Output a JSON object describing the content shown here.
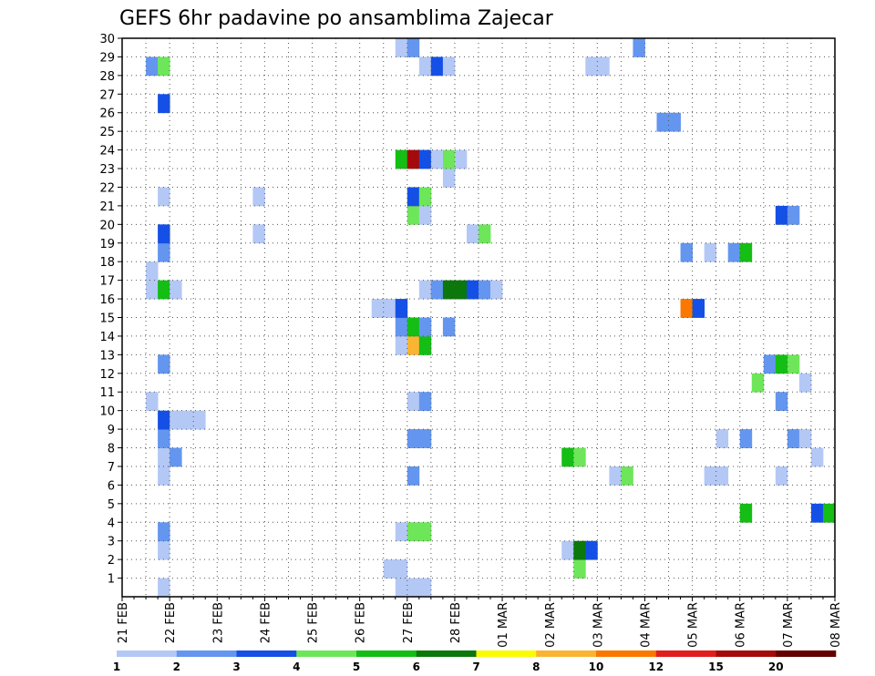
{
  "chart_data": {
    "type": "heatmap",
    "title": "GEFS 6hr padavine po ansamblima Zajecar",
    "xlabel": "",
    "ylabel": "",
    "x_ticks": [
      "21 FEB",
      "22 FEB",
      "23 FEB",
      "24 FEB",
      "25 FEB",
      "26 FEB",
      "27 FEB",
      "28 FEB",
      "01 MAR",
      "02 MAR",
      "03 MAR",
      "04 MAR",
      "05 MAR",
      "06 MAR",
      "07 MAR",
      "08 MAR"
    ],
    "x_unit": "6-hour steps from 21 FEB 00Z",
    "x_range": [
      0,
      60
    ],
    "y_ticks": [
      1,
      2,
      3,
      4,
      5,
      6,
      7,
      8,
      9,
      10,
      11,
      12,
      13,
      14,
      15,
      16,
      17,
      18,
      19,
      20,
      21,
      22,
      23,
      24,
      25,
      26,
      27,
      28,
      29,
      30
    ],
    "y_range": [
      0,
      30
    ],
    "grid": true,
    "legend": {
      "placement": "bottom",
      "bins": [
        1,
        2,
        3,
        4,
        5,
        6,
        7,
        8,
        10,
        12,
        15,
        20
      ],
      "labels": [
        "1",
        "2",
        "3",
        "4",
        "5",
        "6",
        "7",
        "8",
        "10",
        "12",
        "15",
        "20"
      ],
      "colors": [
        "#b4c8f6",
        "#6496f0",
        "#1450e6",
        "#6ee65a",
        "#14be14",
        "#0a780a",
        "#fafa00",
        "#fab432",
        "#fa7800",
        "#e11e1e",
        "#a50a0a",
        "#640000"
      ]
    },
    "cells": [
      {
        "member": 0,
        "step": 4,
        "level": 1
      },
      {
        "member": 0,
        "step": 24,
        "level": 1
      },
      {
        "member": 0,
        "step": 25,
        "level": 1
      },
      {
        "member": 0,
        "step": 26,
        "level": 1
      },
      {
        "member": 1,
        "step": 23,
        "level": 1
      },
      {
        "member": 1,
        "step": 24,
        "level": 1
      },
      {
        "member": 1,
        "step": 39,
        "level": 4
      },
      {
        "member": 2,
        "step": 4,
        "level": 1
      },
      {
        "member": 2,
        "step": 38,
        "level": 1
      },
      {
        "member": 2,
        "step": 39,
        "level": 6
      },
      {
        "member": 2,
        "step": 40,
        "level": 3
      },
      {
        "member": 3,
        "step": 4,
        "level": 2
      },
      {
        "member": 3,
        "step": 24,
        "level": 1
      },
      {
        "member": 3,
        "step": 25,
        "level": 4
      },
      {
        "member": 3,
        "step": 26,
        "level": 4
      },
      {
        "member": 4,
        "step": 53,
        "level": 5
      },
      {
        "member": 4,
        "step": 59,
        "level": 3
      },
      {
        "member": 4,
        "step": 60,
        "level": 5
      },
      {
        "member": 6,
        "step": 4,
        "level": 1
      },
      {
        "member": 6,
        "step": 25,
        "level": 2
      },
      {
        "member": 6,
        "step": 42,
        "level": 1
      },
      {
        "member": 6,
        "step": 43,
        "level": 4
      },
      {
        "member": 6,
        "step": 50,
        "level": 1
      },
      {
        "member": 6,
        "step": 51,
        "level": 1
      },
      {
        "member": 6,
        "step": 56,
        "level": 1
      },
      {
        "member": 7,
        "step": 4,
        "level": 1
      },
      {
        "member": 7,
        "step": 5,
        "level": 2
      },
      {
        "member": 7,
        "step": 38,
        "level": 5
      },
      {
        "member": 7,
        "step": 39,
        "level": 4
      },
      {
        "member": 7,
        "step": 59,
        "level": 1
      },
      {
        "member": 8,
        "step": 4,
        "level": 2
      },
      {
        "member": 8,
        "step": 25,
        "level": 2
      },
      {
        "member": 8,
        "step": 26,
        "level": 2
      },
      {
        "member": 8,
        "step": 51,
        "level": 1
      },
      {
        "member": 8,
        "step": 53,
        "level": 2
      },
      {
        "member": 8,
        "step": 57,
        "level": 2
      },
      {
        "member": 8,
        "step": 58,
        "level": 1
      },
      {
        "member": 9,
        "step": 4,
        "level": 3
      },
      {
        "member": 9,
        "step": 5,
        "level": 1
      },
      {
        "member": 9,
        "step": 6,
        "level": 1
      },
      {
        "member": 9,
        "step": 7,
        "level": 1
      },
      {
        "member": 10,
        "step": 3,
        "level": 1
      },
      {
        "member": 10,
        "step": 25,
        "level": 1
      },
      {
        "member": 10,
        "step": 26,
        "level": 2
      },
      {
        "member": 10,
        "step": 56,
        "level": 2
      },
      {
        "member": 11,
        "step": 54,
        "level": 4
      },
      {
        "member": 11,
        "step": 58,
        "level": 1
      },
      {
        "member": 12,
        "step": 4,
        "level": 2
      },
      {
        "member": 12,
        "step": 55,
        "level": 2
      },
      {
        "member": 12,
        "step": 56,
        "level": 5
      },
      {
        "member": 12,
        "step": 57,
        "level": 4
      },
      {
        "member": 13,
        "step": 24,
        "level": 1
      },
      {
        "member": 13,
        "step": 25,
        "level": 8
      },
      {
        "member": 13,
        "step": 26,
        "level": 5
      },
      {
        "member": 14,
        "step": 24,
        "level": 2
      },
      {
        "member": 14,
        "step": 25,
        "level": 5
      },
      {
        "member": 14,
        "step": 26,
        "level": 2
      },
      {
        "member": 14,
        "step": 28,
        "level": 2
      },
      {
        "member": 15,
        "step": 22,
        "level": 1
      },
      {
        "member": 15,
        "step": 23,
        "level": 1
      },
      {
        "member": 15,
        "step": 24,
        "level": 3
      },
      {
        "member": 15,
        "step": 48,
        "level": 9
      },
      {
        "member": 15,
        "step": 49,
        "level": 3
      },
      {
        "member": 16,
        "step": 3,
        "level": 1
      },
      {
        "member": 16,
        "step": 4,
        "level": 5
      },
      {
        "member": 16,
        "step": 5,
        "level": 1
      },
      {
        "member": 16,
        "step": 26,
        "level": 1
      },
      {
        "member": 16,
        "step": 27,
        "level": 2
      },
      {
        "member": 16,
        "step": 28,
        "level": 6
      },
      {
        "member": 16,
        "step": 29,
        "level": 6
      },
      {
        "member": 16,
        "step": 30,
        "level": 3
      },
      {
        "member": 16,
        "step": 31,
        "level": 2
      },
      {
        "member": 16,
        "step": 32,
        "level": 1
      },
      {
        "member": 17,
        "step": 3,
        "level": 1
      },
      {
        "member": 18,
        "step": 4,
        "level": 2
      },
      {
        "member": 18,
        "step": 48,
        "level": 2
      },
      {
        "member": 18,
        "step": 50,
        "level": 1
      },
      {
        "member": 18,
        "step": 52,
        "level": 2
      },
      {
        "member": 18,
        "step": 53,
        "level": 5
      },
      {
        "member": 19,
        "step": 4,
        "level": 3
      },
      {
        "member": 19,
        "step": 12,
        "level": 1
      },
      {
        "member": 19,
        "step": 30,
        "level": 1
      },
      {
        "member": 19,
        "step": 31,
        "level": 4
      },
      {
        "member": 20,
        "step": 25,
        "level": 4
      },
      {
        "member": 20,
        "step": 26,
        "level": 1
      },
      {
        "member": 20,
        "step": 56,
        "level": 3
      },
      {
        "member": 20,
        "step": 57,
        "level": 2
      },
      {
        "member": 21,
        "step": 4,
        "level": 1
      },
      {
        "member": 21,
        "step": 12,
        "level": 1
      },
      {
        "member": 21,
        "step": 25,
        "level": 3
      },
      {
        "member": 21,
        "step": 26,
        "level": 4
      },
      {
        "member": 22,
        "step": 28,
        "level": 1
      },
      {
        "member": 23,
        "step": 24,
        "level": 5
      },
      {
        "member": 23,
        "step": 25,
        "level": 11
      },
      {
        "member": 23,
        "step": 26,
        "level": 3
      },
      {
        "member": 23,
        "step": 27,
        "level": 1
      },
      {
        "member": 23,
        "step": 28,
        "level": 4
      },
      {
        "member": 23,
        "step": 29,
        "level": 1
      },
      {
        "member": 25,
        "step": 46,
        "level": 2
      },
      {
        "member": 25,
        "step": 47,
        "level": 2
      },
      {
        "member": 26,
        "step": 4,
        "level": 3
      },
      {
        "member": 28,
        "step": 3,
        "level": 2
      },
      {
        "member": 28,
        "step": 4,
        "level": 4
      },
      {
        "member": 28,
        "step": 26,
        "level": 1
      },
      {
        "member": 28,
        "step": 27,
        "level": 3
      },
      {
        "member": 28,
        "step": 28,
        "level": 1
      },
      {
        "member": 28,
        "step": 40,
        "level": 1
      },
      {
        "member": 28,
        "step": 41,
        "level": 1
      },
      {
        "member": 29,
        "step": 24,
        "level": 1
      },
      {
        "member": 29,
        "step": 25,
        "level": 2
      },
      {
        "member": 29,
        "step": 44,
        "level": 2
      }
    ]
  }
}
